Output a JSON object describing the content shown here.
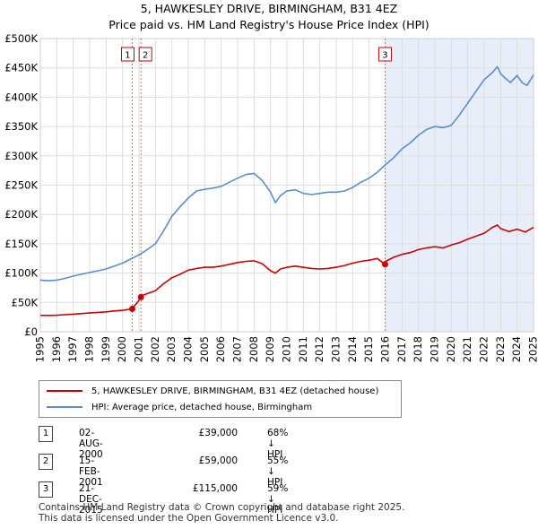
{
  "title_line1": "5, HAWKESLEY DRIVE, BIRMINGHAM, B31 4EZ",
  "title_line2": "Price paid vs. HM Land Registry's House Price Index (HPI)",
  "chart_data": {
    "type": "line",
    "x_range": [
      1995,
      2025
    ],
    "y_range": [
      0,
      500000
    ],
    "y_ticks": [
      0,
      50000,
      100000,
      150000,
      200000,
      250000,
      300000,
      350000,
      400000,
      450000,
      500000
    ],
    "y_tick_labels": [
      "£0",
      "£50K",
      "£100K",
      "£150K",
      "£200K",
      "£250K",
      "£300K",
      "£350K",
      "£400K",
      "£450K",
      "£500K"
    ],
    "x_ticks": [
      1995,
      1996,
      1997,
      1998,
      1999,
      2000,
      2001,
      2002,
      2003,
      2004,
      2005,
      2006,
      2007,
      2008,
      2009,
      2010,
      2011,
      2012,
      2013,
      2014,
      2015,
      2016,
      2017,
      2018,
      2019,
      2020,
      2021,
      2022,
      2023,
      2024,
      2025
    ],
    "x_tick_labels": [
      "1995",
      "1996",
      "1997",
      "1998",
      "1999",
      "2000",
      "2001",
      "2002",
      "2003",
      "2004",
      "2005",
      "2006",
      "2007",
      "2008",
      "2009",
      "2010",
      "2011",
      "2012",
      "2013",
      "2014",
      "2015",
      "2016",
      "2017",
      "2018",
      "2019",
      "2020",
      "2021",
      "2022",
      "2023",
      "2024",
      "2025"
    ],
    "grid": true,
    "shaded_from": 2015.97,
    "series": [
      {
        "name": "5, HAWKESLEY DRIVE, BIRMINGHAM, B31 4EZ (detached house)",
        "color": "#cc0000",
        "x": [
          1995.0,
          1995.5,
          1996.0,
          1996.5,
          1997.0,
          1997.5,
          1998.0,
          1998.5,
          1999.0,
          1999.5,
          2000.0,
          2000.4,
          2000.59,
          2000.6,
          2000.9,
          2001.12,
          2001.2,
          2001.5,
          2002.0,
          2002.5,
          2003.0,
          2003.5,
          2004.0,
          2004.5,
          2005.0,
          2005.5,
          2006.0,
          2006.5,
          2007.0,
          2007.5,
          2008.0,
          2008.5,
          2009.0,
          2009.3,
          2009.6,
          2010.0,
          2010.5,
          2011.0,
          2011.5,
          2012.0,
          2012.5,
          2013.0,
          2013.5,
          2014.0,
          2014.5,
          2015.0,
          2015.5,
          2015.97,
          2016.0,
          2016.5,
          2017.0,
          2017.5,
          2018.0,
          2018.5,
          2019.0,
          2019.5,
          2020.0,
          2020.5,
          2021.0,
          2021.5,
          2022.0,
          2022.5,
          2022.8,
          2023.0,
          2023.5,
          2024.0,
          2024.5,
          2025.0
        ],
        "values": [
          28000,
          27800,
          28200,
          29000,
          30000,
          31000,
          32000,
          33000,
          34000,
          35500,
          36500,
          38000,
          39000,
          40000,
          50000,
          59000,
          62000,
          65000,
          70000,
          82000,
          92000,
          98000,
          105000,
          108000,
          110000,
          110000,
          112000,
          115000,
          118000,
          120000,
          121000,
          116000,
          104000,
          100000,
          107000,
          110000,
          112000,
          110000,
          108000,
          107000,
          108000,
          110000,
          113000,
          117000,
          120000,
          122000,
          125000,
          115000,
          120000,
          127000,
          132000,
          135000,
          140000,
          143000,
          145000,
          143000,
          148000,
          152000,
          158000,
          163000,
          168000,
          178000,
          182000,
          176000,
          171000,
          175000,
          170000,
          178000
        ]
      },
      {
        "name": "HPI: Average price, detached house, Birmingham",
        "color": "#5b8bd0",
        "x": [
          1995.0,
          1995.5,
          1996.0,
          1996.5,
          1997.0,
          1997.5,
          1998.0,
          1998.5,
          1999.0,
          1999.5,
          2000.0,
          2000.5,
          2001.0,
          2001.5,
          2002.0,
          2002.5,
          2003.0,
          2003.5,
          2004.0,
          2004.5,
          2005.0,
          2005.5,
          2006.0,
          2006.5,
          2007.0,
          2007.5,
          2008.0,
          2008.5,
          2009.0,
          2009.3,
          2009.6,
          2010.0,
          2010.5,
          2011.0,
          2011.5,
          2012.0,
          2012.5,
          2013.0,
          2013.5,
          2014.0,
          2014.5,
          2015.0,
          2015.5,
          2016.0,
          2016.5,
          2017.0,
          2017.5,
          2018.0,
          2018.5,
          2019.0,
          2019.5,
          2020.0,
          2020.5,
          2021.0,
          2021.5,
          2022.0,
          2022.5,
          2022.8,
          2023.0,
          2023.3,
          2023.6,
          2024.0,
          2024.3,
          2024.6,
          2025.0
        ],
        "values": [
          88000,
          87000,
          88000,
          91000,
          95000,
          98000,
          101000,
          104000,
          107000,
          112000,
          117000,
          124000,
          131000,
          140000,
          150000,
          172000,
          197000,
          213000,
          228000,
          240000,
          243000,
          245000,
          248000,
          255000,
          262000,
          268000,
          270000,
          258000,
          238000,
          220000,
          232000,
          240000,
          242000,
          236000,
          234000,
          236000,
          238000,
          238000,
          240000,
          246000,
          255000,
          262000,
          272000,
          285000,
          297000,
          312000,
          322000,
          335000,
          345000,
          350000,
          348000,
          352000,
          370000,
          390000,
          410000,
          430000,
          442000,
          452000,
          440000,
          432000,
          425000,
          437000,
          425000,
          420000,
          438000
        ]
      }
    ],
    "transactions": [
      {
        "num": "1",
        "x": 2000.59,
        "price": 39000
      },
      {
        "num": "2",
        "x": 2001.12,
        "price": 59000
      },
      {
        "num": "3",
        "x": 2015.97,
        "price": 115000
      }
    ]
  },
  "legend": {
    "red_label": "5, HAWKESLEY DRIVE, BIRMINGHAM, B31 4EZ (detached house)",
    "blue_label": "HPI: Average price, detached house, Birmingham"
  },
  "table": [
    {
      "num": "1",
      "date": "02-AUG-2000",
      "price": "£39,000",
      "hpi": "68% ↓ HPI"
    },
    {
      "num": "2",
      "date": "15-FEB-2001",
      "price": "£59,000",
      "hpi": "55% ↓ HPI"
    },
    {
      "num": "3",
      "date": "21-DEC-2015",
      "price": "£115,000",
      "hpi": "59% ↓ HPI"
    }
  ],
  "footer": {
    "line1": "Contains HM Land Registry data © Crown copyright and database right 2025.",
    "line2": "This data is licensed under the Open Government Licence v3.0."
  }
}
